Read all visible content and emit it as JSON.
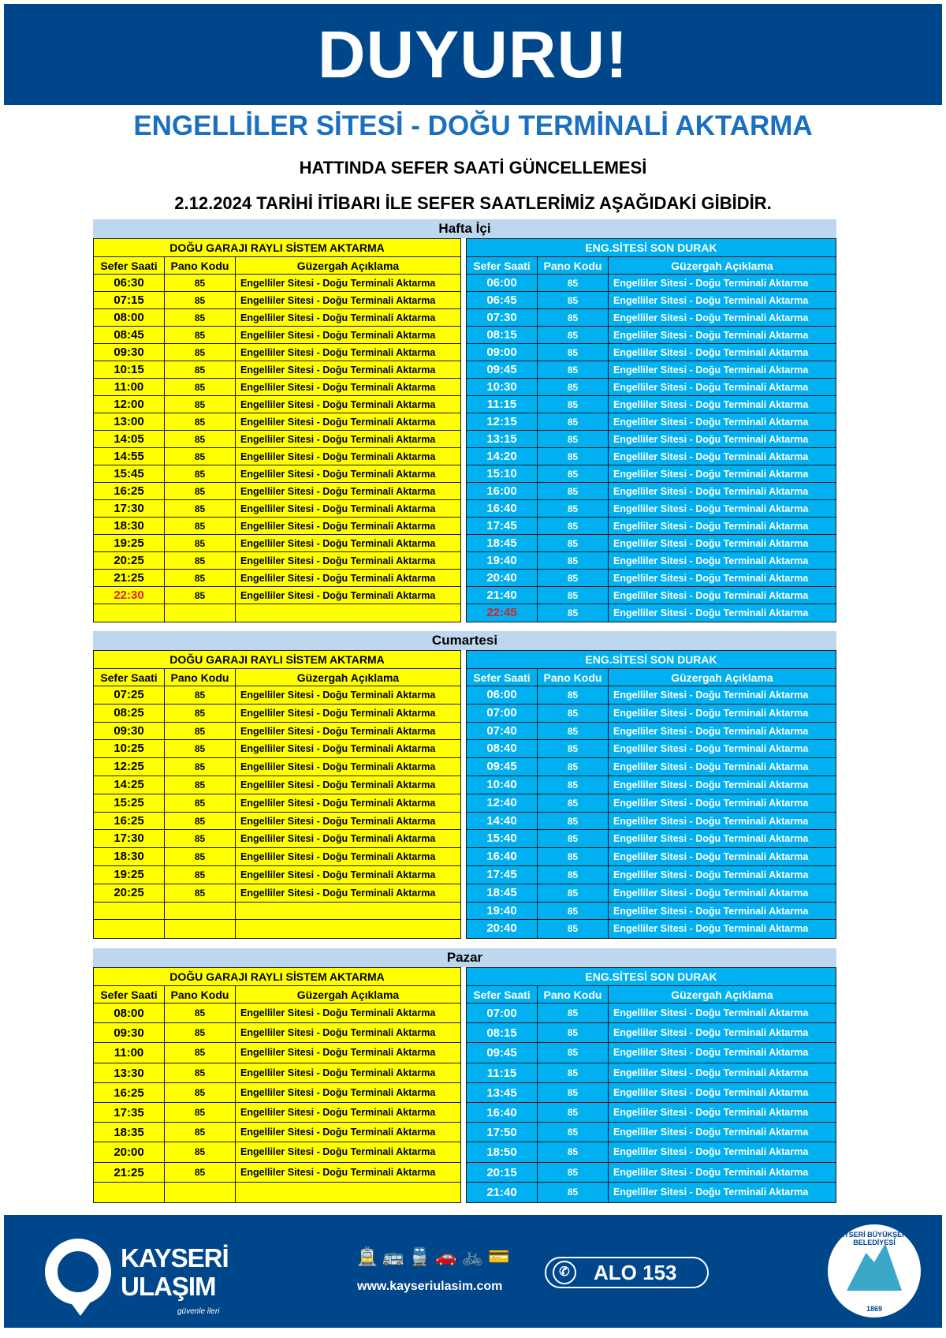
{
  "header": {
    "title": "DUYURU!",
    "line1": "ENGELLİLER SİTESİ - DOĞU TERMİNALİ AKTARMA",
    "line2": "HATTINDA SEFER SAATİ GÜNCELLEMESİ",
    "line3": "2.12.2024 TARİHİ İTİBARI İLE SEFER SAATLERİMİZ AŞAĞIDAKİ GİBİDİR."
  },
  "columns": {
    "time": "Sefer Saati",
    "code": "Pano Kodu",
    "route": "Güzergah Açıklama"
  },
  "route": {
    "code": "85",
    "description": "Engelliler Sitesi - Doğu Terminali Aktarma"
  },
  "colors": {
    "left_table": "#ffff00",
    "right_table": "#00b0f0",
    "day_band": "#bdd7ee",
    "brand": "#00468b",
    "late_trip": "#e41e1e"
  },
  "sections": [
    {
      "day": "Hafta İçi",
      "left": {
        "title": "DOĞU GARAJI RAYLI SİSTEM AKTARMA",
        "rows": [
          {
            "t": "06:30"
          },
          {
            "t": "07:15"
          },
          {
            "t": "08:00"
          },
          {
            "t": "08:45"
          },
          {
            "t": "09:30"
          },
          {
            "t": "10:15"
          },
          {
            "t": "11:00"
          },
          {
            "t": "12:00"
          },
          {
            "t": "13:00"
          },
          {
            "t": "14:05"
          },
          {
            "t": "14:55"
          },
          {
            "t": "15:45"
          },
          {
            "t": "16:25"
          },
          {
            "t": "17:30"
          },
          {
            "t": "18:30"
          },
          {
            "t": "19:25"
          },
          {
            "t": "20:25"
          },
          {
            "t": "21:25"
          },
          {
            "t": "22:30",
            "red": true
          },
          {
            "t": ""
          }
        ]
      },
      "right": {
        "title": "ENG.SİTESİ SON DURAK",
        "rows": [
          {
            "t": "06:00"
          },
          {
            "t": "06:45"
          },
          {
            "t": "07:30"
          },
          {
            "t": "08:15"
          },
          {
            "t": "09:00"
          },
          {
            "t": "09:45"
          },
          {
            "t": "10:30"
          },
          {
            "t": "11:15"
          },
          {
            "t": "12:15"
          },
          {
            "t": "13:15"
          },
          {
            "t": "14:20"
          },
          {
            "t": "15:10"
          },
          {
            "t": "16:00"
          },
          {
            "t": "16:40"
          },
          {
            "t": "17:45"
          },
          {
            "t": "18:45"
          },
          {
            "t": "19:40"
          },
          {
            "t": "20:40"
          },
          {
            "t": "21:40"
          },
          {
            "t": "22:45",
            "red": true
          }
        ]
      }
    },
    {
      "day": "Cumartesi",
      "left": {
        "title": "DOĞU GARAJI RAYLI SİSTEM AKTARMA",
        "rows": [
          {
            "t": "07:25"
          },
          {
            "t": "08:25"
          },
          {
            "t": "09:30"
          },
          {
            "t": "10:25"
          },
          {
            "t": "12:25"
          },
          {
            "t": "14:25"
          },
          {
            "t": "15:25"
          },
          {
            "t": "16:25"
          },
          {
            "t": "17:30"
          },
          {
            "t": "18:30"
          },
          {
            "t": "19:25"
          },
          {
            "t": "20:25"
          },
          {
            "t": ""
          },
          {
            "t": ""
          }
        ]
      },
      "right": {
        "title": "ENG.SİTESİ SON DURAK",
        "rows": [
          {
            "t": "06:00"
          },
          {
            "t": "07:00"
          },
          {
            "t": "07:40"
          },
          {
            "t": "08:40"
          },
          {
            "t": "09:45"
          },
          {
            "t": "10:40"
          },
          {
            "t": "12:40"
          },
          {
            "t": "14:40"
          },
          {
            "t": "15:40"
          },
          {
            "t": "16:40"
          },
          {
            "t": "17:45"
          },
          {
            "t": "18:45"
          },
          {
            "t": "19:40"
          },
          {
            "t": "20:40"
          }
        ]
      }
    },
    {
      "day": "Pazar",
      "left": {
        "title": "DOĞU GARAJI RAYLI SİSTEM AKTARMA",
        "rows": [
          {
            "t": "08:00"
          },
          {
            "t": "09:30"
          },
          {
            "t": "11:00"
          },
          {
            "t": "13:30"
          },
          {
            "t": "16:25"
          },
          {
            "t": "17:35"
          },
          {
            "t": "18:35"
          },
          {
            "t": "20:00"
          },
          {
            "t": "21:25"
          },
          {
            "t": ""
          }
        ]
      },
      "right": {
        "title": "ENG.SİTESİ SON DURAK",
        "rows": [
          {
            "t": "07:00"
          },
          {
            "t": "08:15"
          },
          {
            "t": "09:45"
          },
          {
            "t": "11:15"
          },
          {
            "t": "13:45"
          },
          {
            "t": "16:40"
          },
          {
            "t": "17:50"
          },
          {
            "t": "18:50"
          },
          {
            "t": "20:15"
          },
          {
            "t": "21:40"
          }
        ]
      }
    }
  ],
  "footer": {
    "brand_line1": "KAYSERİ",
    "brand_line2": "ULAŞIM",
    "tagline": "güvenle ileri",
    "transport_icons": [
      "tram-icon",
      "bus-icon",
      "train-icon",
      "parking-car-icon",
      "bicycle-icon",
      "card-tap-icon"
    ],
    "website": "www.kayseriulasim.com",
    "hotline": "ALO 153",
    "seal_text": "KAYSERİ BÜYÜKŞEHİR BELEDİYESİ",
    "seal_year": "1869"
  }
}
